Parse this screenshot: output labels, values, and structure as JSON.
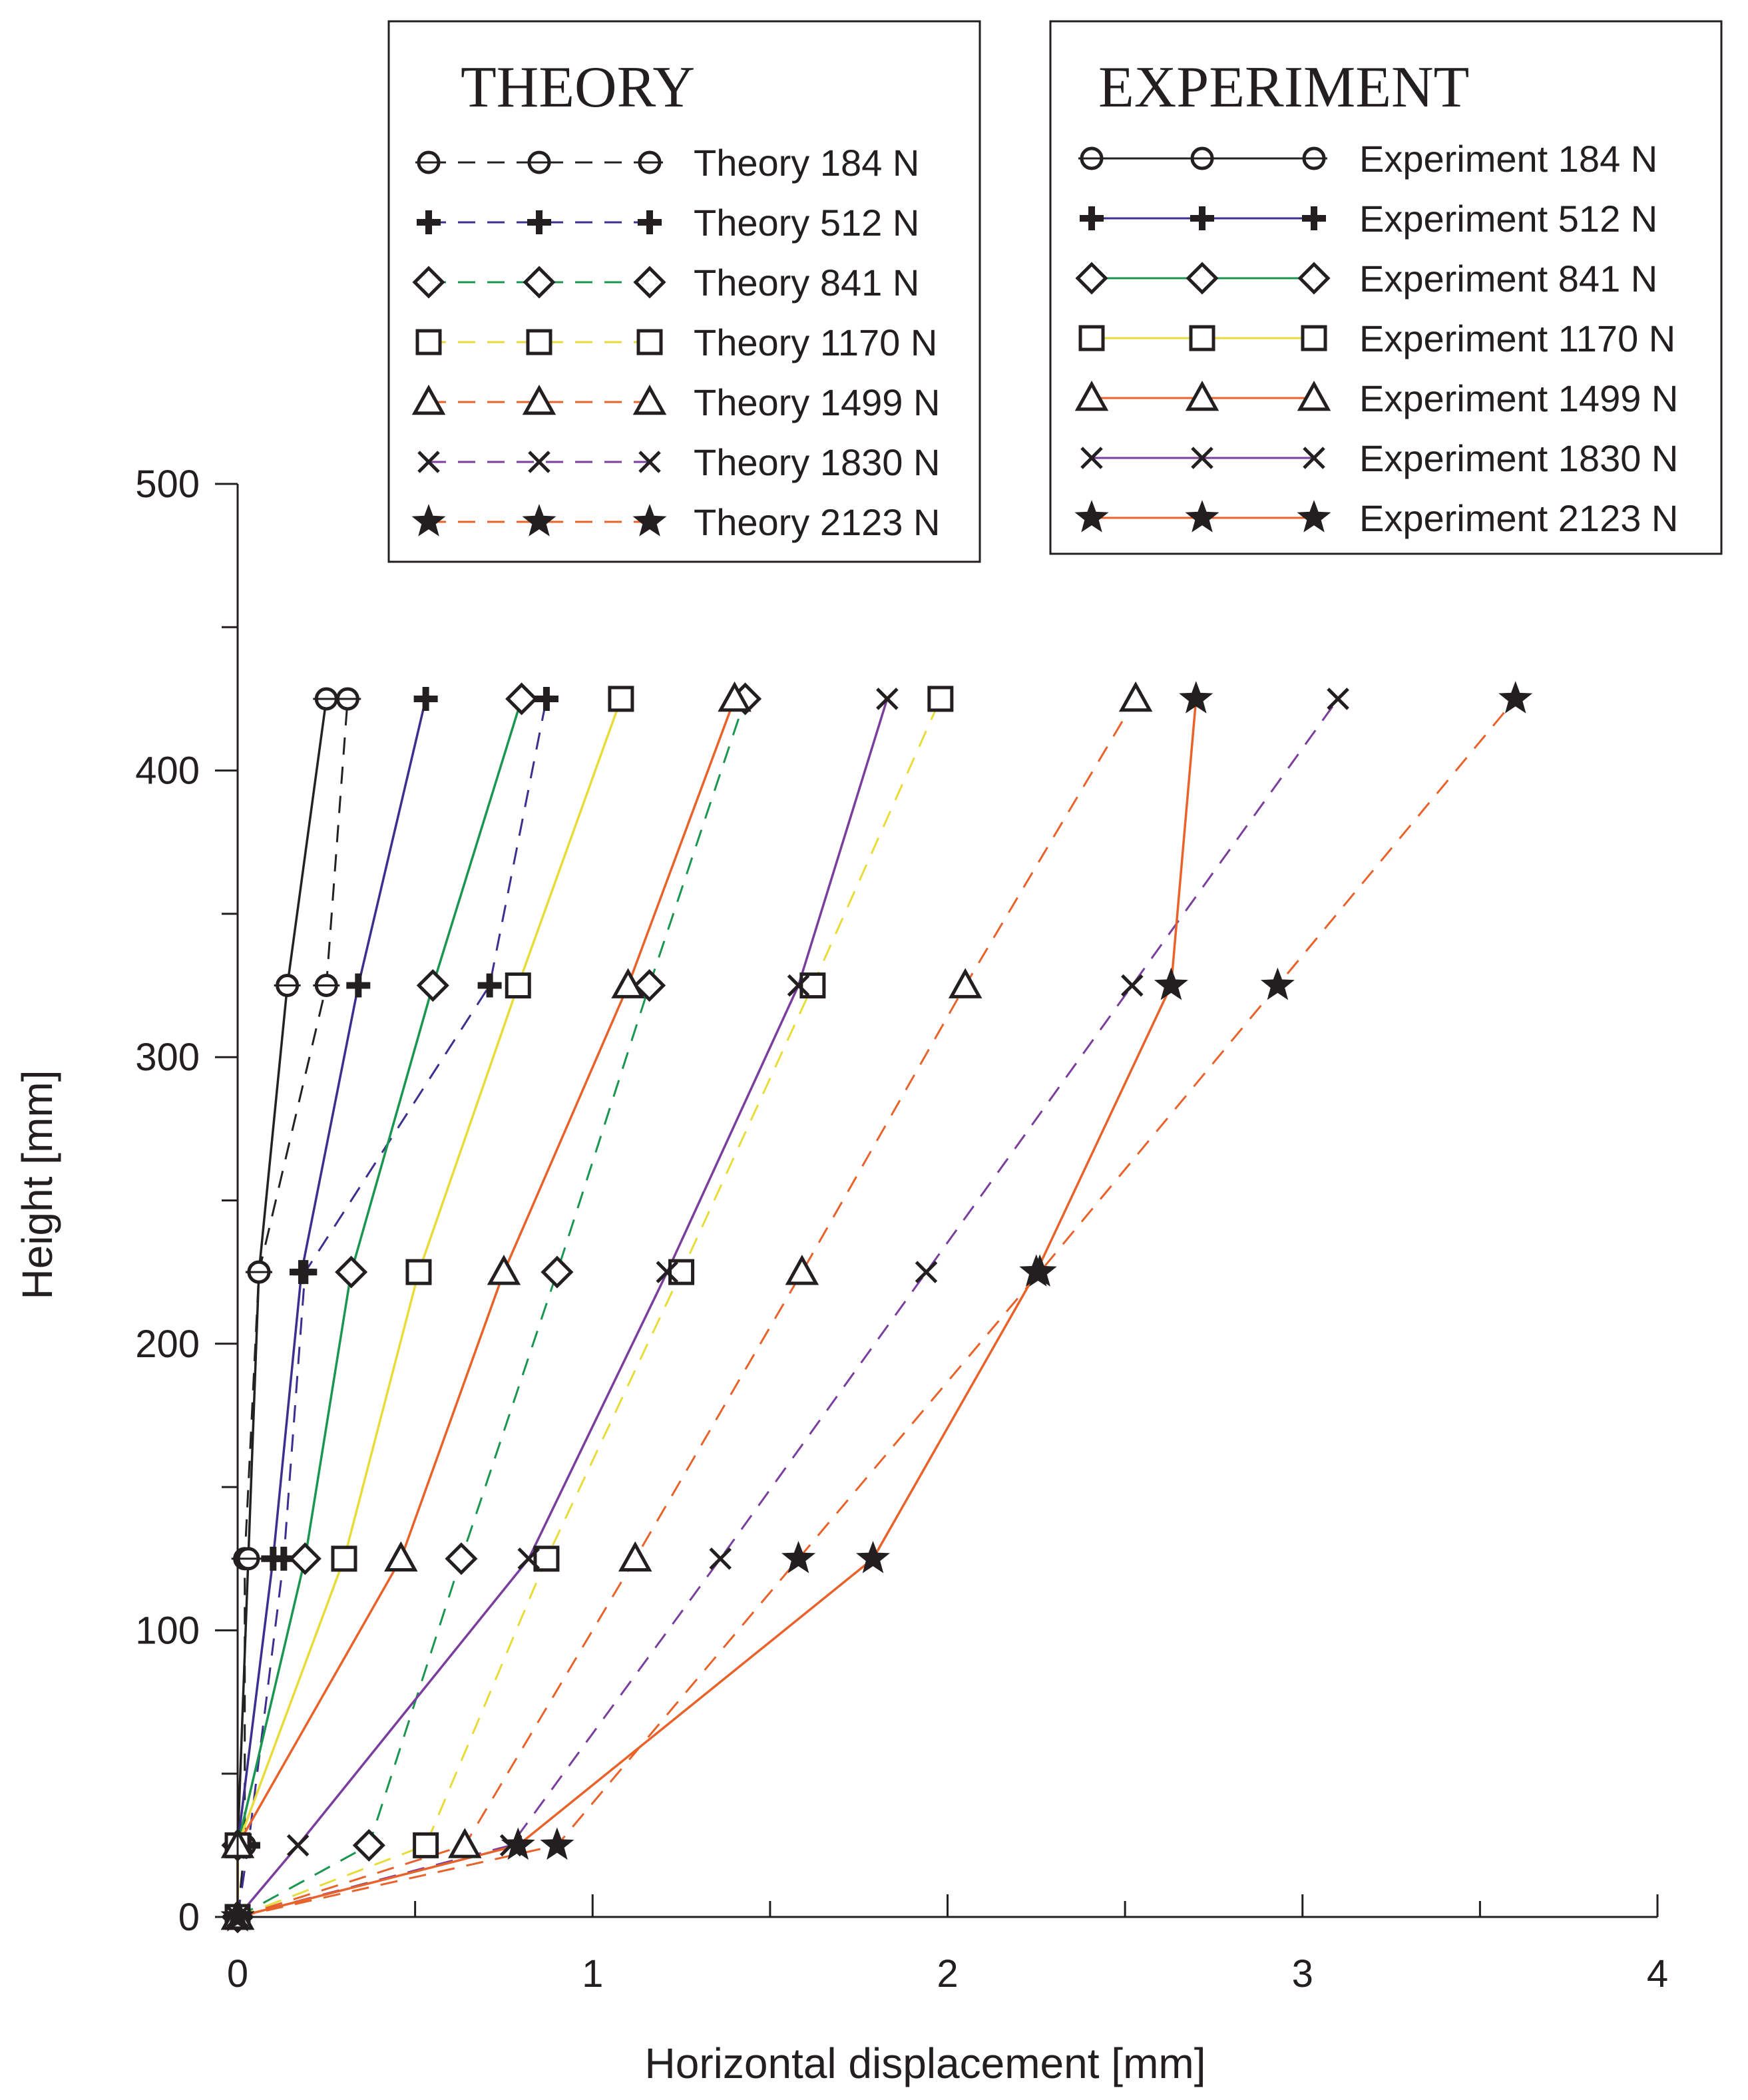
{
  "chart_data": {
    "type": "line",
    "title": "",
    "xlabel": "Horizontal displacement [mm]",
    "ylabel": "Height [mm]",
    "xlim": [
      0,
      4
    ],
    "ylim": [
      0,
      500
    ],
    "x_ticks": [
      "0",
      "1",
      "2",
      "3",
      "4"
    ],
    "y_ticks": [
      "0",
      "100",
      "200",
      "300",
      "400",
      "500"
    ],
    "x_tick_values": [
      0,
      1,
      2,
      3,
      4
    ],
    "y_tick_values": [
      0,
      100,
      200,
      300,
      400,
      500
    ],
    "heights": [
      0,
      25,
      125,
      225,
      325,
      425
    ],
    "legends": [
      {
        "title": "THEORY",
        "placement": "top-center"
      },
      {
        "title": "EXPERIMENT",
        "placement": "top-right"
      }
    ],
    "series": [
      {
        "name": "Theory 184 N",
        "group": "theory",
        "marker": "circle",
        "color": "#222222",
        "dashed": true,
        "x": [
          0,
          0.02,
          0.02,
          0.06,
          0.25,
          0.31
        ]
      },
      {
        "name": "Theory 512 N",
        "group": "theory",
        "marker": "plus",
        "color": "#3b2f8f",
        "dashed": true,
        "x": [
          0,
          0.03,
          0.13,
          0.19,
          0.71,
          0.87
        ]
      },
      {
        "name": "Theory 841 N",
        "group": "theory",
        "marker": "diamond",
        "color": "#1a9650",
        "dashed": true,
        "x": [
          0,
          0.37,
          0.63,
          0.9,
          1.16,
          1.43
        ]
      },
      {
        "name": "Theory 1170 N",
        "group": "theory",
        "marker": "square",
        "color": "#e8dc3a",
        "dashed": true,
        "x": [
          0,
          0.53,
          0.87,
          1.25,
          1.62,
          1.98
        ]
      },
      {
        "name": "Theory 1499 N",
        "group": "theory",
        "marker": "triangle",
        "color": "#e8622a",
        "dashed": true,
        "x": [
          0,
          0.64,
          1.12,
          1.59,
          2.05,
          2.53
        ]
      },
      {
        "name": "Theory 1830 N",
        "group": "theory",
        "marker": "cross",
        "color": "#7a3e9d",
        "dashed": true,
        "x": [
          0,
          0.77,
          1.36,
          1.94,
          2.52,
          3.1
        ]
      },
      {
        "name": "Theory 2123 N",
        "group": "theory",
        "marker": "star",
        "color": "#e8622a",
        "dashed": true,
        "x": [
          0,
          0.9,
          1.58,
          2.26,
          2.93,
          3.6
        ]
      },
      {
        "name": "Experiment 184 N",
        "group": "experiment",
        "marker": "circle",
        "color": "#222222",
        "dashed": false,
        "x": [
          0,
          0,
          0.03,
          0.06,
          0.14,
          0.25
        ]
      },
      {
        "name": "Experiment 512 N",
        "group": "experiment",
        "marker": "plus",
        "color": "#3b2f8f",
        "dashed": false,
        "x": [
          0,
          0,
          0.1,
          0.18,
          0.34,
          0.53
        ]
      },
      {
        "name": "Experiment 841 N",
        "group": "experiment",
        "marker": "diamond",
        "color": "#1a9650",
        "dashed": false,
        "x": [
          0,
          0,
          0.19,
          0.32,
          0.55,
          0.8
        ]
      },
      {
        "name": "Experiment 1170 N",
        "group": "experiment",
        "marker": "square",
        "color": "#e8dc3a",
        "dashed": false,
        "x": [
          0,
          0,
          0.3,
          0.51,
          0.79,
          1.08
        ]
      },
      {
        "name": "Experiment 1499 N",
        "group": "experiment",
        "marker": "triangle",
        "color": "#e8622a",
        "dashed": false,
        "x": [
          0,
          0,
          0.46,
          0.75,
          1.1,
          1.4
        ]
      },
      {
        "name": "Experiment 1830 N",
        "group": "experiment",
        "marker": "cross",
        "color": "#7a3e9d",
        "dashed": false,
        "x": [
          0,
          0.17,
          0.82,
          1.21,
          1.58,
          1.83
        ]
      },
      {
        "name": "Experiment 2123 N",
        "group": "experiment",
        "marker": "star",
        "color": "#e8622a",
        "dashed": false,
        "x": [
          0,
          0.79,
          1.79,
          2.25,
          2.63,
          2.7
        ]
      }
    ]
  }
}
